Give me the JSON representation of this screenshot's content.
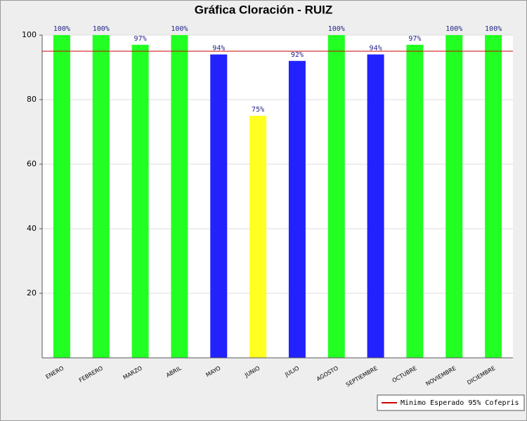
{
  "chart_data": {
    "type": "bar",
    "title": "Gráfica Cloración - RUIZ",
    "categories": [
      "ENERO",
      "FEBRERO",
      "MARZO",
      "ABRIL",
      "MAYO",
      "JUNIO",
      "JULIO",
      "AGOSTO",
      "SEPTIEMBRE",
      "OCTUBRE",
      "NOVIEMBRE",
      "DICIEMBRE"
    ],
    "values": [
      100,
      100,
      97,
      100,
      94,
      75,
      92,
      100,
      94,
      97,
      100,
      100
    ],
    "value_labels": [
      "100%",
      "100%",
      "97%",
      "100%",
      "94%",
      "75%",
      "92%",
      "100%",
      "94%",
      "97%",
      "100%",
      "100%"
    ],
    "colors": [
      "#22ff22",
      "#22ff22",
      "#22ff22",
      "#22ff22",
      "#2222ff",
      "#ffff22",
      "#2222ff",
      "#22ff22",
      "#2222ff",
      "#22ff22",
      "#22ff22",
      "#22ff22"
    ],
    "ylim": [
      0,
      100
    ],
    "yticks": [
      20,
      40,
      60,
      80,
      100
    ],
    "grid": true,
    "reference_line": {
      "value": 95,
      "label": "Minimo Esperado 95% Cofepris",
      "color": "#cc0000"
    },
    "legend": "bottom-right"
  }
}
